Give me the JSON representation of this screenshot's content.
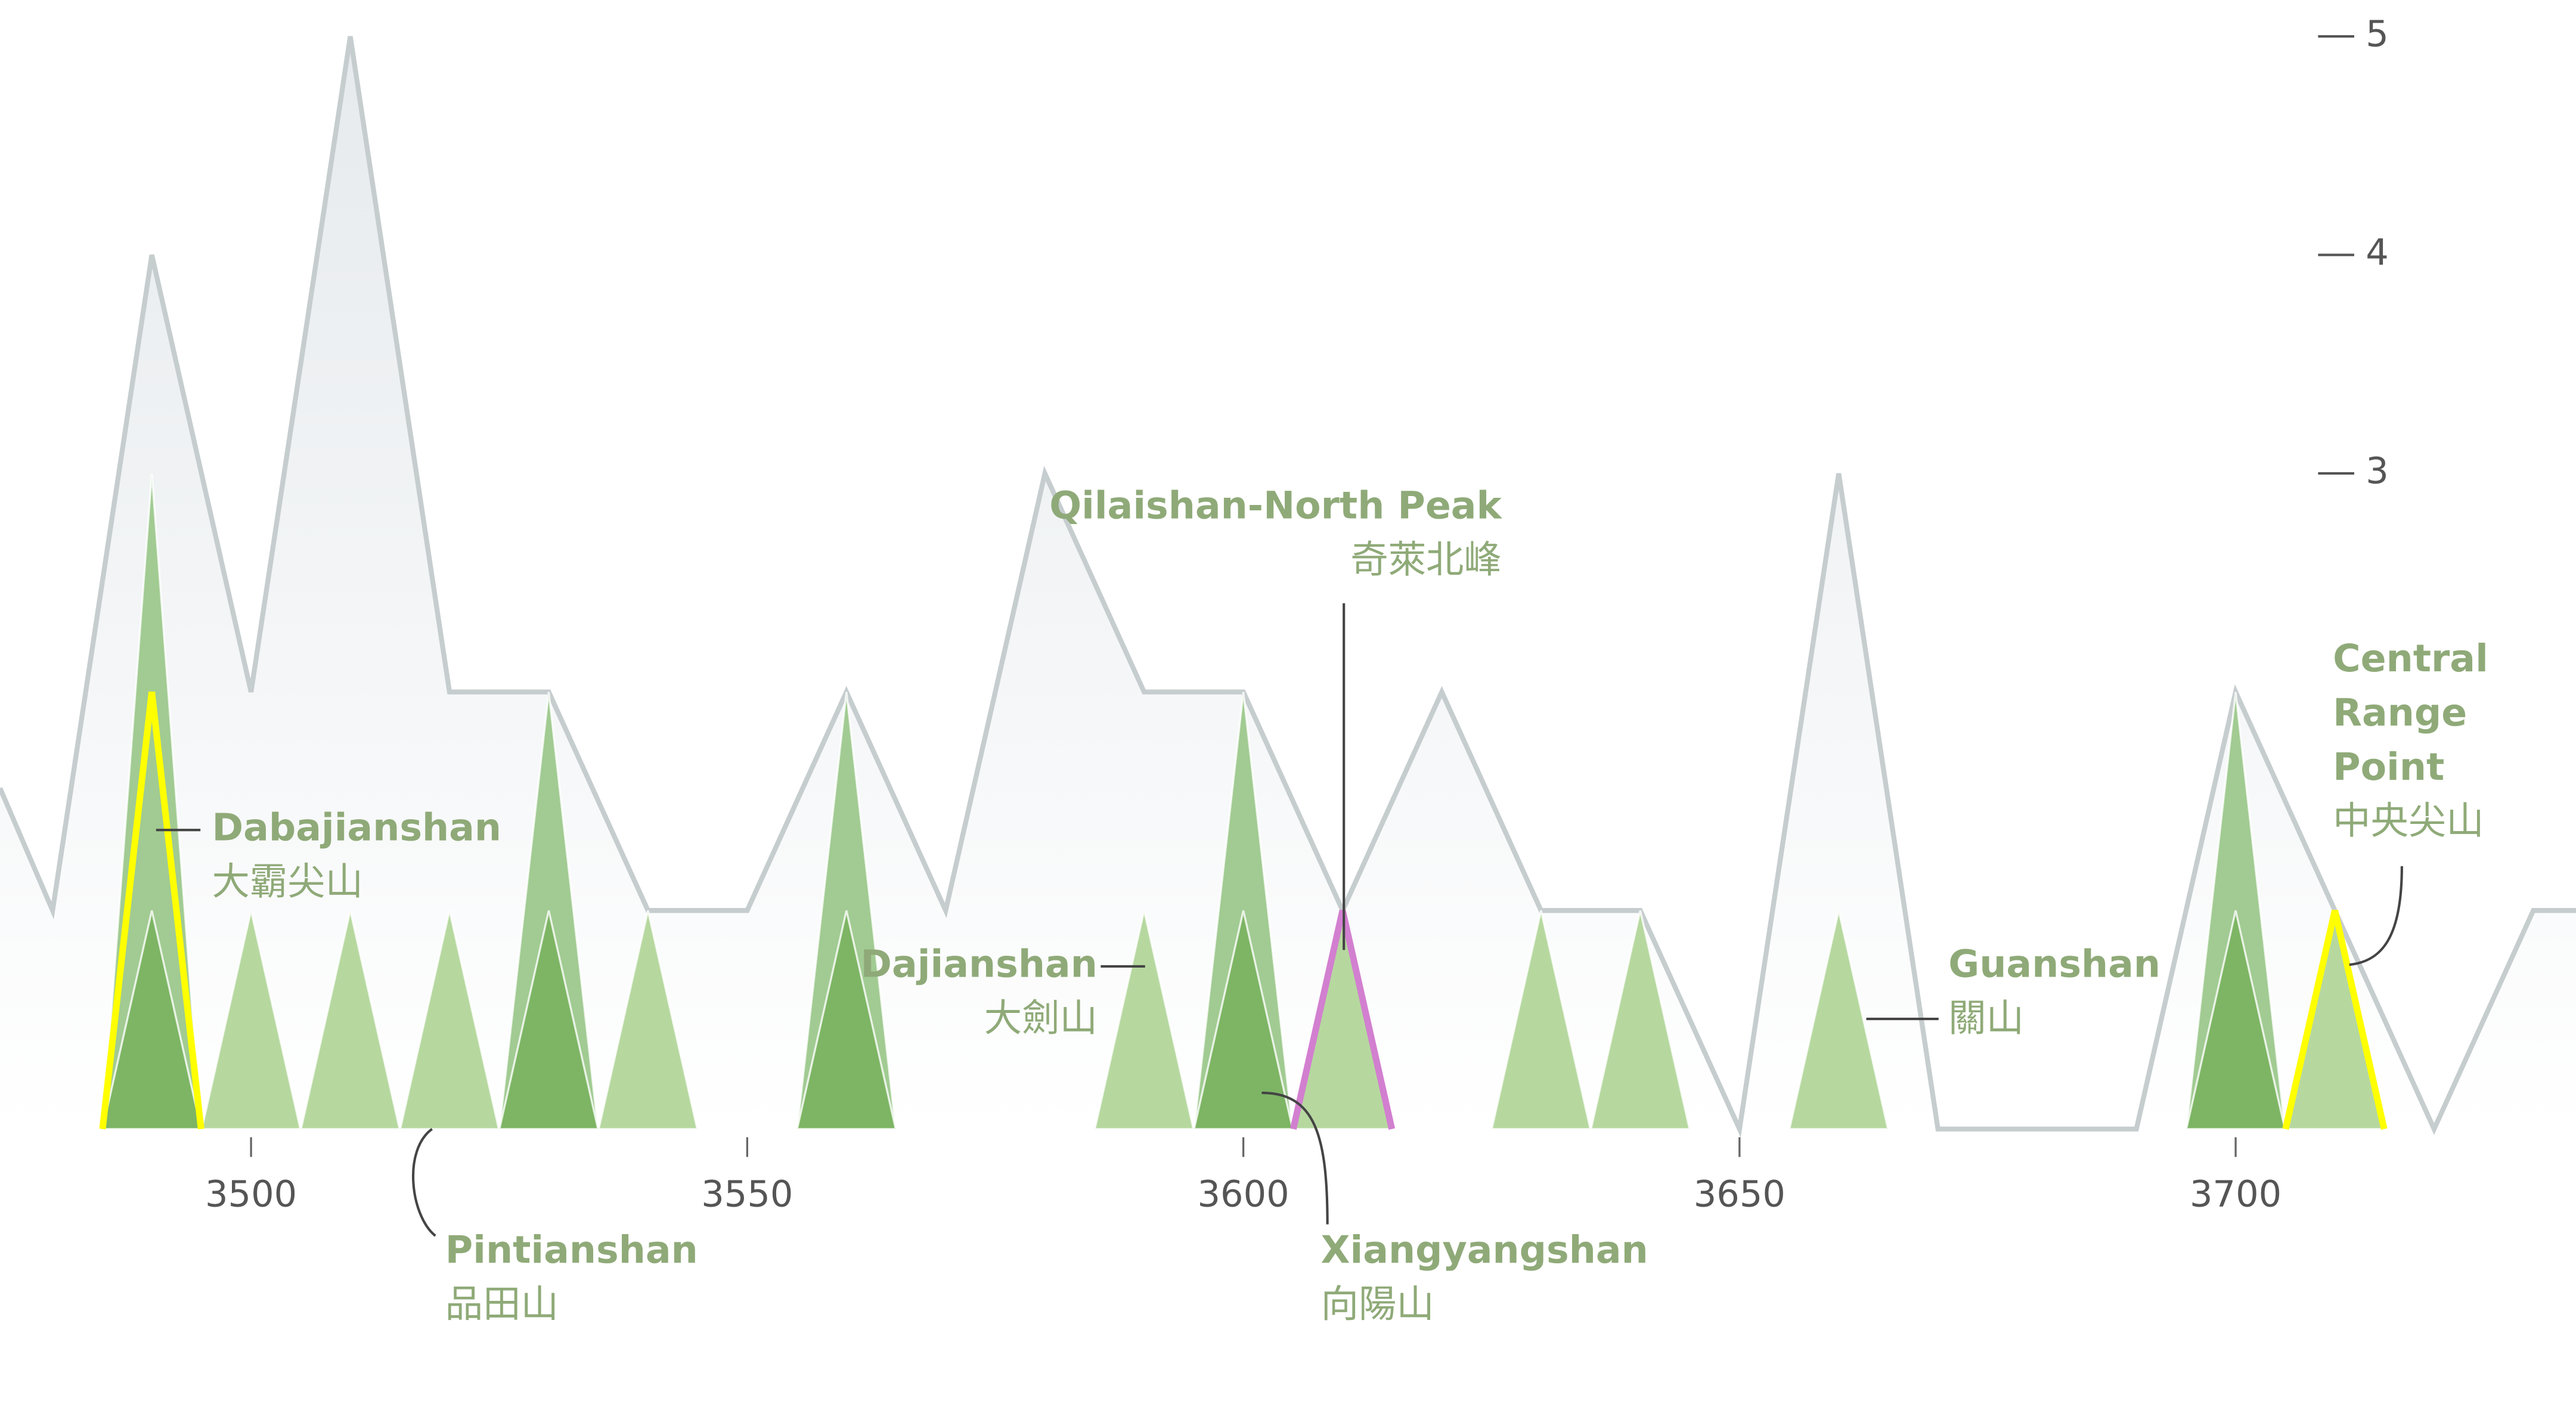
{
  "chart_data": {
    "type": "peaks",
    "xlim": [
      3474.7,
      3734.3
    ],
    "ylim": [
      0,
      5.165
    ],
    "xticks": [
      3500,
      3550,
      3600,
      3650,
      3700
    ],
    "yticks": [
      3,
      4,
      5
    ],
    "ridge": {
      "color": "#c6cdcf",
      "x": [
        3474.7,
        3480,
        3490,
        3500,
        3510,
        3520,
        3530,
        3540,
        3550,
        3560,
        3570,
        3580,
        3590,
        3600,
        3610,
        3620,
        3630,
        3640,
        3650,
        3660,
        3670,
        3680,
        3690,
        3700,
        3710,
        3720,
        3730,
        3734.3
      ],
      "values": [
        1.56,
        1,
        4,
        2,
        5,
        2,
        2,
        1,
        1,
        2,
        1,
        3,
        2,
        2,
        1,
        2,
        1,
        1,
        0,
        3,
        0,
        0,
        0,
        2,
        1,
        0,
        1,
        1
      ]
    },
    "series": [
      {
        "style": "fill",
        "color": "#a1cb92",
        "x": [
          3490,
          3530,
          3560,
          3600,
          3700
        ],
        "values": [
          3,
          2,
          2,
          2,
          2
        ]
      },
      {
        "style": "fill",
        "color": "#7db564",
        "x": [
          3490,
          3530,
          3560,
          3600,
          3700
        ],
        "values": [
          1,
          1,
          1,
          1,
          1
        ]
      },
      {
        "style": "fill",
        "color": "#b6d89f",
        "x": [
          3500,
          3510,
          3520,
          3540,
          3590,
          3610,
          3630,
          3640,
          3660,
          3710
        ],
        "values": [
          1,
          1,
          1,
          1,
          1,
          1,
          1,
          1,
          1,
          1
        ]
      },
      {
        "style": "outline",
        "color": "#ffff00",
        "x": [
          3490,
          3710
        ],
        "values": [
          2,
          1
        ]
      },
      {
        "style": "outline",
        "color": "#d27fd0",
        "x": [
          3610
        ],
        "values": [
          1
        ]
      }
    ],
    "annotations": [
      {
        "lines": [
          "Dabajianshan",
          "大霸尖山"
        ]
      },
      {
        "lines": [
          "Pintianshan",
          "品田山"
        ]
      },
      {
        "lines": [
          "Qilaishan-North Peak",
          "奇萊北峰"
        ]
      },
      {
        "lines": [
          "Dajianshan",
          "大劍山"
        ]
      },
      {
        "lines": [
          "Xiangyangshan",
          "向陽山"
        ]
      },
      {
        "lines": [
          "Guanshan",
          "關山"
        ]
      },
      {
        "lines": [
          "Central",
          "Range",
          "Point",
          "中央尖山"
        ]
      }
    ]
  }
}
